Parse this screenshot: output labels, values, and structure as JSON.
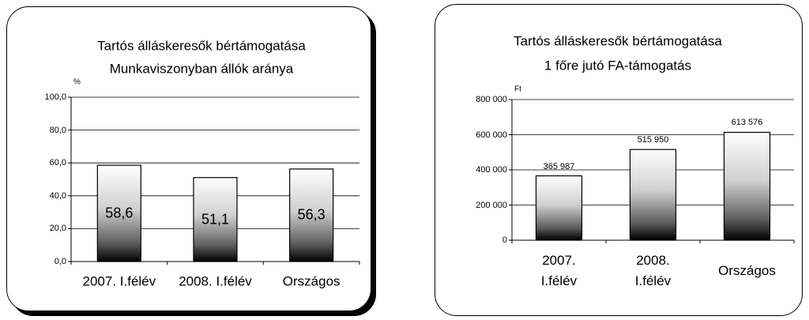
{
  "chart_data": [
    {
      "type": "bar",
      "title": "Tartós álláskeresők bértámogatása",
      "subtitle": "Munkaviszonyban állók aránya",
      "y_unit": "%",
      "categories": [
        "2007. I.félév",
        "2008. I.félév",
        "Országos"
      ],
      "values": [
        58.6,
        51.1,
        56.3
      ],
      "value_labels": [
        "58,6",
        "51,1",
        "56,3"
      ],
      "ylim": [
        0,
        100
      ],
      "yticks": [
        {
          "value": 0,
          "label": "0,0"
        },
        {
          "value": 20,
          "label": "20,0"
        },
        {
          "value": 40,
          "label": "40,0"
        },
        {
          "value": 60,
          "label": "60,0"
        },
        {
          "value": 80,
          "label": "80,0"
        },
        {
          "value": 100,
          "label": "100,0"
        }
      ],
      "grid": true,
      "value_label_position": "inside"
    },
    {
      "type": "bar",
      "title": "Tartós álláskeresők bértámogatása",
      "subtitle": "1 főre jutó FA-támogatás",
      "y_unit": "Ft",
      "categories": [
        "2007. I.félév",
        "2008. I.félév",
        "Országos"
      ],
      "values": [
        365987,
        515950,
        613576
      ],
      "value_labels": [
        "365 987",
        "515 950",
        "613 576"
      ],
      "ylim": [
        0,
        800000
      ],
      "yticks": [
        0,
        {
          "value": 200000,
          "label": "200 000"
        },
        {
          "value": 400000,
          "label": "400 000"
        },
        {
          "value": 600000,
          "label": "600 000"
        },
        {
          "value": 800000,
          "label": "800 000"
        }
      ],
      "grid": true,
      "value_label_position": "above"
    }
  ]
}
